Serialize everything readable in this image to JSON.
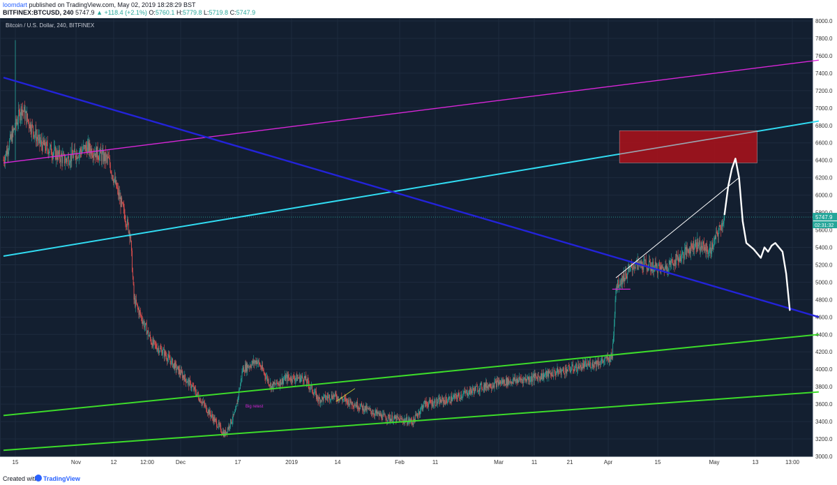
{
  "header": {
    "author": "loomdart",
    "published": "published on TradingView.com, May 02, 2019 18:28:29 BST",
    "symbol": "BITFINEX:BTCUSD, 240",
    "last": "5747.9",
    "change": "▲ +118.4 (+2.1%)",
    "o_label": "O:",
    "o": "5760.1",
    "h_label": "H:",
    "h": "5779.8",
    "l_label": "L:",
    "l": "5719.8",
    "c_label": "C:",
    "c": "5747.9"
  },
  "footer": {
    "created": "Created with",
    "brand": "TradingView"
  },
  "colors": {
    "background": "#131f30",
    "grid": "#1e2b3e",
    "up": "#26a69a",
    "down": "#ef5350",
    "purple": "#d926d9",
    "cyan": "#31dcf2",
    "blue": "#2323d9",
    "green": "#3ddc2a",
    "white": "#ffffff",
    "zone": "#a5121c",
    "price_tag": "#26a69a"
  },
  "chart_data": {
    "type": "line",
    "title": "Bitcoin / U.S. Dollar, 240, BITFINEX",
    "ylim": [
      3000,
      8000
    ],
    "yticks": [
      3000,
      3200,
      3400,
      3600,
      3800,
      4000,
      4200,
      4400,
      4600,
      4800,
      5000,
      5200,
      5400,
      5600,
      5800,
      6000,
      6200,
      6400,
      6600,
      6800,
      7000,
      7200,
      7400,
      7600,
      7800,
      8000
    ],
    "xticks": [
      "15",
      "Nov",
      "12",
      "12:00",
      "Dec",
      "17",
      "2019",
      "14",
      "Feb",
      "11",
      "Mar",
      "11",
      "21",
      "Apr",
      "15",
      "May",
      "13",
      "13:00"
    ],
    "last_price": "5747.9",
    "countdown": "02:31:32",
    "annotation": "Big retest",
    "series": [
      {
        "style": "price",
        "x": [
          "Oct 15",
          "Oct 20",
          "Oct 25",
          "Nov 1",
          "Nov 7",
          "Nov 13",
          "Nov 14",
          "Nov 19",
          "Nov 20",
          "Nov 25",
          "Nov 28",
          "Dec 1",
          "Dec 6",
          "Dec 10",
          "Dec 15",
          "Dec 18",
          "Dec 20",
          "Dec 24",
          "Dec 28",
          "Jan 1",
          "Jan 6",
          "Jan 10",
          "Jan 14",
          "Jan 20",
          "Jan 28",
          "Feb 5",
          "Feb 8",
          "Feb 15",
          "Feb 24",
          "Mar 1",
          "Mar 10",
          "Mar 20",
          "Mar 30",
          "Apr 1",
          "Apr 2",
          "Apr 7",
          "Apr 10",
          "Apr 15",
          "Apr 20",
          "Apr 24",
          "Apr 28",
          "May 2"
        ],
        "values": [
          6400,
          7000,
          6600,
          6400,
          6550,
          6400,
          6250,
          5550,
          4800,
          4300,
          4200,
          4050,
          3800,
          3550,
          3250,
          3500,
          4000,
          4100,
          3800,
          3900,
          3900,
          3650,
          3700,
          3600,
          3450,
          3400,
          3600,
          3650,
          3800,
          3850,
          3900,
          4000,
          4100,
          4150,
          4950,
          5200,
          5200,
          5150,
          5300,
          5450,
          5350,
          5747.9
        ]
      }
    ],
    "trendlines": [
      {
        "name": "purple",
        "x": [
          "Oct 15",
          "May 28"
        ],
        "y": [
          6370,
          7550
        ]
      },
      {
        "name": "cyan",
        "x": [
          "Oct 15",
          "May 28"
        ],
        "y": [
          5300,
          6850
        ]
      },
      {
        "name": "blue",
        "x": [
          "Oct 15",
          "May 28"
        ],
        "y": [
          7350,
          4600
        ]
      },
      {
        "name": "green-upper",
        "x": [
          "Oct 15",
          "May 28"
        ],
        "y": [
          3470,
          4400
        ]
      },
      {
        "name": "green-lower",
        "x": [
          "Oct 15",
          "May 28"
        ],
        "y": [
          3070,
          3740
        ]
      },
      {
        "name": "white-trend",
        "x": [
          "Apr 2",
          "May 6"
        ],
        "y": [
          5050,
          6200
        ]
      }
    ],
    "zone": {
      "x": [
        "Apr 3",
        "May 11"
      ],
      "y": [
        6370,
        6740
      ]
    },
    "projection": {
      "x": [
        "May 2",
        "May 3",
        "May 4",
        "May 5",
        "May 6",
        "May 7",
        "May 8",
        "May 10",
        "May 12",
        "May 13",
        "May 14",
        "May 15",
        "May 16",
        "May 18",
        "May 19",
        "May 20"
      ],
      "y": [
        5780,
        6100,
        6300,
        6420,
        6200,
        5700,
        5450,
        5380,
        5280,
        5400,
        5350,
        5420,
        5450,
        5350,
        5100,
        4680
      ]
    }
  }
}
